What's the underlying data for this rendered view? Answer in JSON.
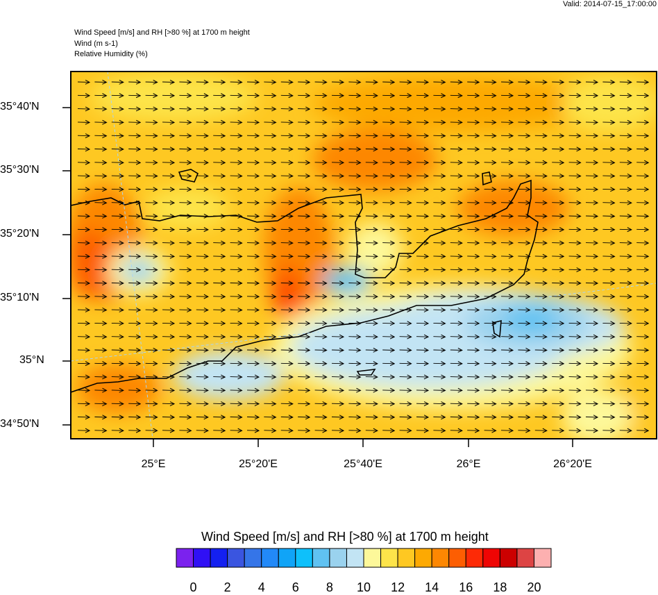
{
  "valid_time": "Valid: 2014-07-15_17:00:00",
  "header": {
    "line1": "Wind Speed [m/s] and RH [>80 %] at 1700 m height",
    "line2": "Wind   (m s-1)",
    "line3": "Relative Humidity   (%)"
  },
  "chart_data": {
    "type": "heatmap",
    "title": "Wind Speed [m/s] and RH [>80 %] at 1700 m height",
    "lat_ticks": [
      "35°40'N",
      "35°30'N",
      "35°20'N",
      "35°10'N",
      "35°N",
      "34°50'N"
    ],
    "lon_ticks": [
      "25°E",
      "25°20'E",
      "25°40'E",
      "26°E",
      "26°20'E"
    ],
    "wind_direction": "west-to-east",
    "colorbar": {
      "labels": [
        "0",
        "2",
        "4",
        "6",
        "8",
        "10",
        "12",
        "14",
        "16",
        "18",
        "20"
      ],
      "colors": [
        "#7b22ee",
        "#3010f5",
        "#1420f0",
        "#3a55e0",
        "#3575e8",
        "#2289f8",
        "#10a4f7",
        "#0ec0fb",
        "#60c2f2",
        "#9ad2ee",
        "#c2e4f4",
        "#fdf89a",
        "#fde44a",
        "#fec822",
        "#fda902",
        "#fd8702",
        "#fd5e02",
        "#fd2a06",
        "#ef0504",
        "#cc0000",
        "#dd4444",
        "#fdb0b0"
      ]
    }
  }
}
